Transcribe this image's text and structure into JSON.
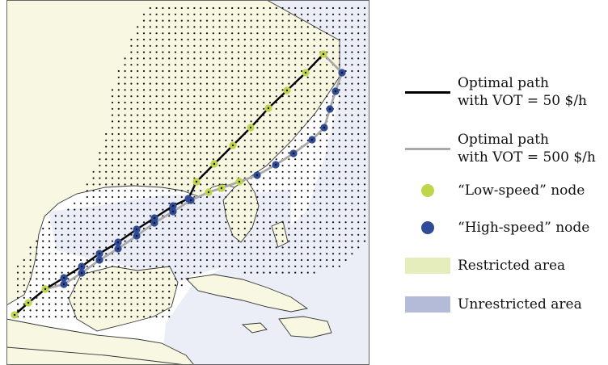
{
  "colors": {
    "land": "#f8f8e2",
    "water": "#ffffff",
    "unrestricted_fill": "#eceef7",
    "unrestricted_swatch": "#b3bbd9",
    "restricted_swatch": "#e6edbd",
    "low_speed_node": "#bfd64a",
    "high_speed_node": "#2f4a97",
    "path_low_vot": "#000000",
    "path_high_vot": "#a9a9a9",
    "coast": "#333333",
    "grid_dot": "#111111"
  },
  "legend": {
    "path_vot50_line1": "Optimal path",
    "path_vot50_line2": "with VOT = 50 $/h",
    "path_vot500_line1": "Optimal path",
    "path_vot500_line2": "with VOT = 500 $/h",
    "low_speed": "“Low-speed” node",
    "high_speed": "“High-speed” node",
    "restricted": "Restricted area",
    "unrestricted": "Unrestricted area"
  }
}
